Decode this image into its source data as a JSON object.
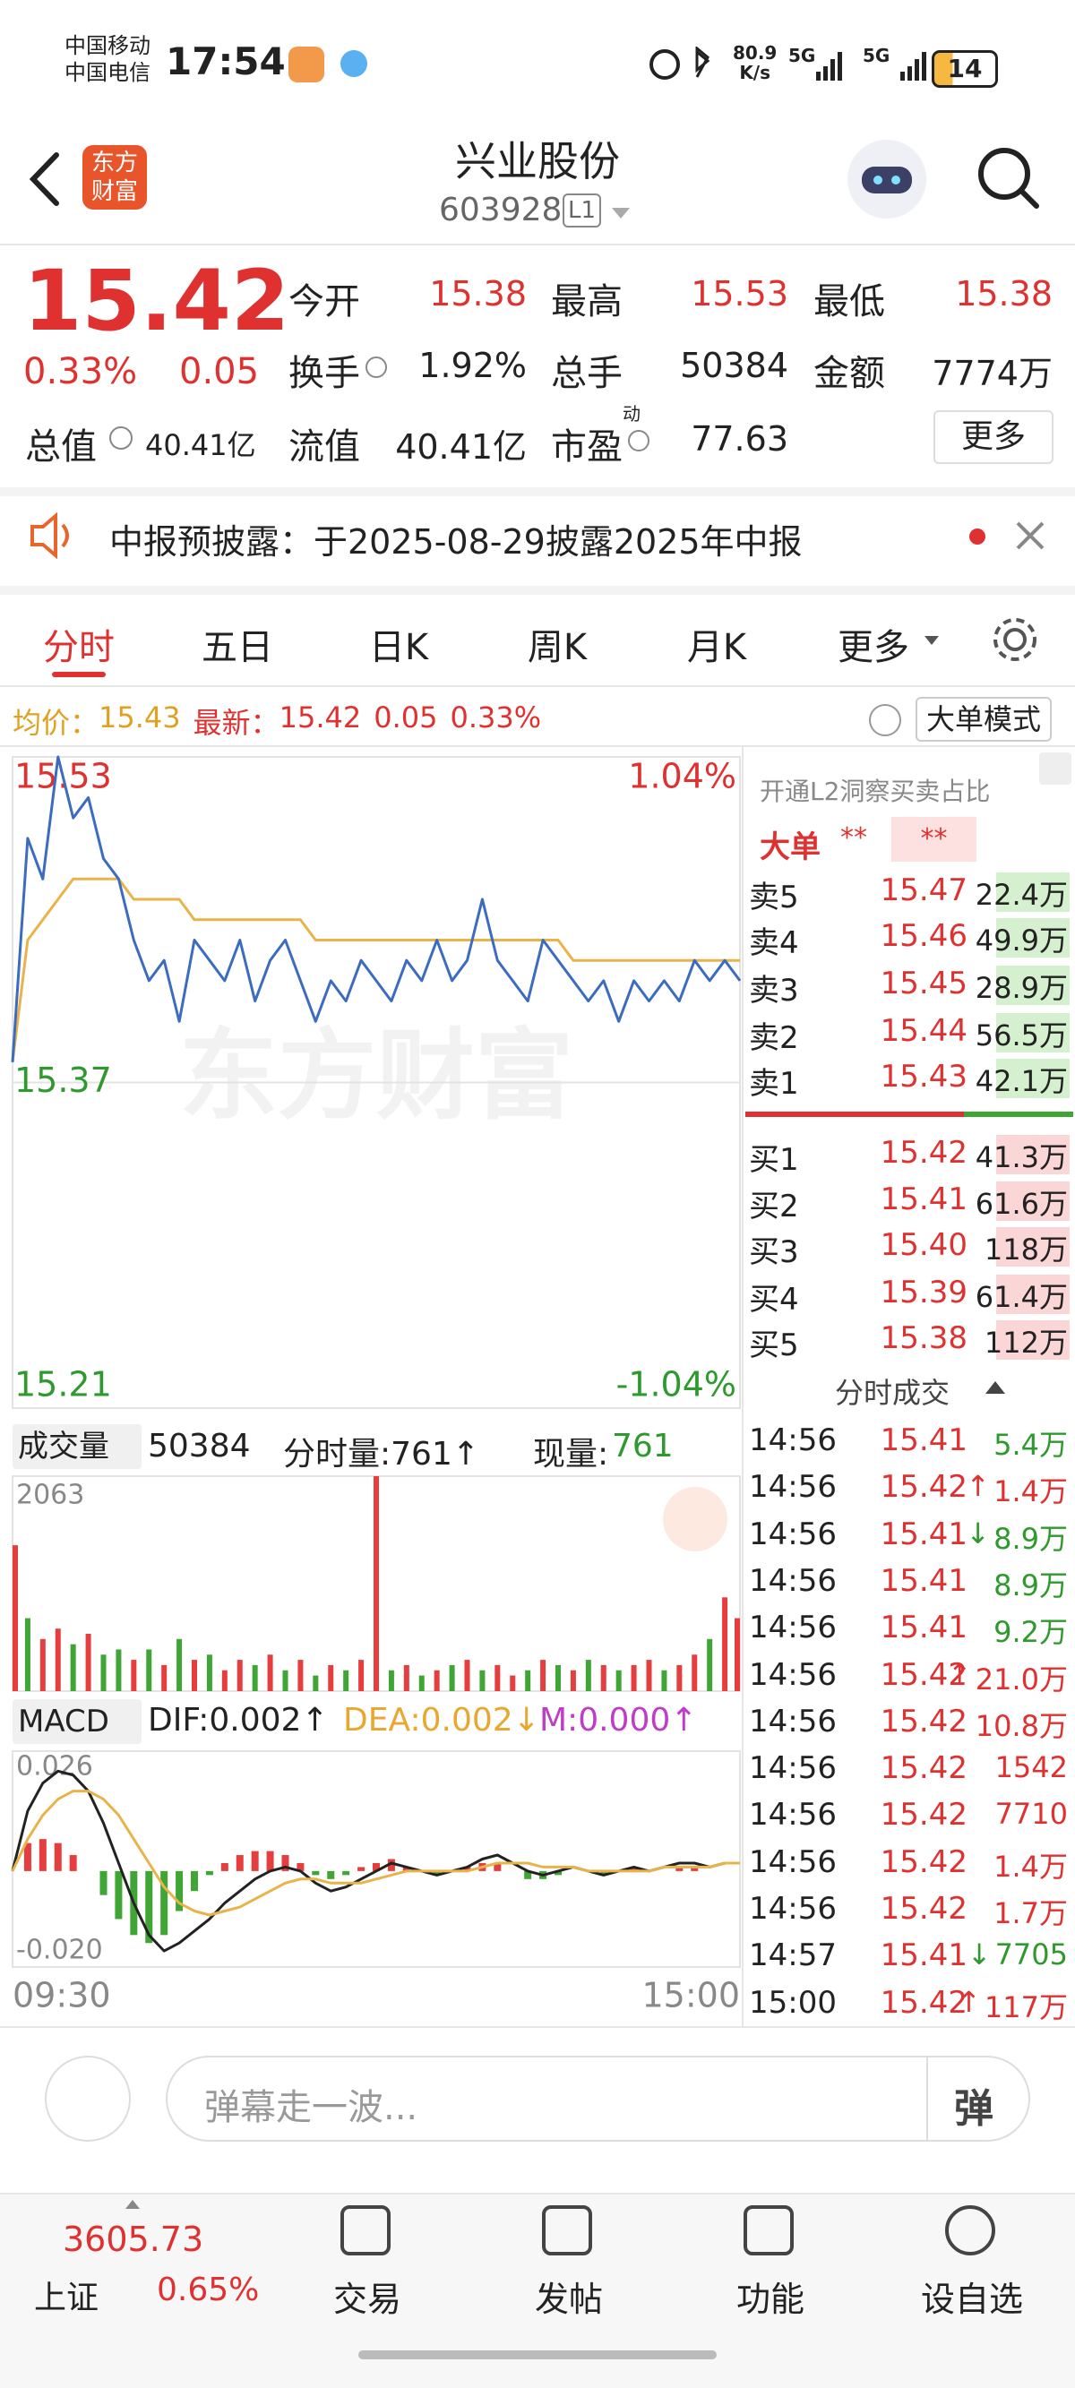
{
  "status_bar": {
    "carrier_1": "中国移动",
    "carrier_2": "中国电信",
    "time": "17:54",
    "net_speed": "80.9",
    "net_speed_unit": "K/s",
    "network_1": "5G",
    "network_2": "5G",
    "battery": "14"
  },
  "header": {
    "logo_line_1": "东方",
    "logo_line_2": "财富",
    "title": "兴业股份",
    "code": "603928",
    "level": "L1"
  },
  "quote": {
    "price": "15.42",
    "change_percent": "0.33%",
    "change": "0.05",
    "total_value_label": "总值",
    "total_value": "40.41亿",
    "more_button": "更多",
    "stats": [
      {
        "label": "今开",
        "value": "15.38"
      },
      {
        "label": "最高",
        "value": "15.53"
      },
      {
        "label": "最低",
        "value": "15.38"
      },
      {
        "label": "换手",
        "value": "1.92%"
      },
      {
        "label": "总手",
        "value": "50384"
      },
      {
        "label": "金额",
        "value": "7774万"
      },
      {
        "label": "流值",
        "value": "40.41亿"
      },
      {
        "label": "市盈",
        "sup": "动",
        "value": "77.63"
      }
    ]
  },
  "notice": {
    "text": "中报预披露：于2025-08-29披露2025年中报"
  },
  "tabs": [
    "分时",
    "五日",
    "日K",
    "周K",
    "月K",
    "更多"
  ],
  "summary": {
    "avg_label": "均价：",
    "avg": "15.43",
    "latest_label": "最新：",
    "latest": "15.42",
    "change": "0.05",
    "change_percent": "0.33%",
    "mode_button": "大单模式"
  },
  "volume_header": {
    "label": "成交量",
    "total": "50384",
    "period_volume": "分时量:761↑",
    "current_label": "现量:",
    "current": "761"
  },
  "macd_header": {
    "label": "MACD",
    "dif": "DIF:0.002↑",
    "dea": "DEA:0.002↓",
    "m": "M:0.000↑"
  },
  "chart_data": [
    {
      "type": "line",
      "watermark": "东方财富",
      "x": [
        0,
        5,
        10,
        15,
        20,
        25,
        30,
        35,
        40,
        45,
        50,
        55,
        60,
        65,
        70,
        75,
        80,
        85,
        90,
        95,
        100,
        105,
        110,
        115,
        120,
        125,
        130,
        135,
        140,
        145,
        150,
        155,
        160,
        165,
        170,
        175,
        180,
        185,
        190,
        195,
        200,
        205,
        210,
        215,
        220,
        225,
        230,
        235,
        240
      ],
      "series": [
        {
          "color": "#3b6cc0",
          "values": [
            15.38,
            15.49,
            15.47,
            15.53,
            15.5,
            15.51,
            15.48,
            15.47,
            15.44,
            15.42,
            15.43,
            15.4,
            15.44,
            15.43,
            15.42,
            15.44,
            15.41,
            15.43,
            15.44,
            15.42,
            15.4,
            15.42,
            15.41,
            15.43,
            15.42,
            15.41,
            15.43,
            15.42,
            15.44,
            15.42,
            15.43,
            15.46,
            15.43,
            15.42,
            15.41,
            15.44,
            15.43,
            15.42,
            15.41,
            15.42,
            15.4,
            15.42,
            15.41,
            15.42,
            15.41,
            15.43,
            15.42,
            15.43,
            15.42
          ]
        },
        {
          "color": "#e8b44a",
          "values": [
            15.38,
            15.44,
            15.45,
            15.46,
            15.47,
            15.47,
            15.47,
            15.47,
            15.46,
            15.46,
            15.46,
            15.46,
            15.45,
            15.45,
            15.45,
            15.45,
            15.45,
            15.45,
            15.45,
            15.45,
            15.44,
            15.44,
            15.44,
            15.44,
            15.44,
            15.44,
            15.44,
            15.44,
            15.44,
            15.44,
            15.44,
            15.44,
            15.44,
            15.44,
            15.44,
            15.44,
            15.44,
            15.43,
            15.43,
            15.43,
            15.43,
            15.43,
            15.43,
            15.43,
            15.43,
            15.43,
            15.43,
            15.43,
            15.43
          ]
        }
      ],
      "xlim": [
        0,
        240
      ],
      "ylim": [
        15.21,
        15.53
      ],
      "yticks": [
        15.21,
        15.37,
        15.53
      ],
      "y2lim": [
        -1.04,
        1.04
      ],
      "y2ticks": [
        {
          "value": -1.04,
          "label": "-1.04%"
        },
        {
          "value": 1.04,
          "label": "1.04%"
        }
      ]
    },
    {
      "type": "bar",
      "x": [
        0,
        5,
        10,
        15,
        20,
        25,
        30,
        35,
        40,
        45,
        50,
        55,
        60,
        65,
        70,
        75,
        80,
        85,
        90,
        95,
        100,
        105,
        110,
        115,
        120,
        125,
        130,
        135,
        140,
        145,
        150,
        155,
        160,
        165,
        170,
        175,
        180,
        185,
        190,
        195,
        200,
        205,
        210,
        215,
        220,
        225,
        230,
        235,
        240
      ],
      "values": [
        1400,
        700,
        500,
        600,
        450,
        550,
        350,
        400,
        300,
        400,
        250,
        500,
        300,
        350,
        200,
        300,
        250,
        350,
        200,
        300,
        150,
        250,
        200,
        300,
        2063,
        200,
        250,
        150,
        200,
        250,
        300,
        200,
        250,
        150,
        200,
        300,
        250,
        200,
        300,
        250,
        200,
        250,
        300,
        200,
        250,
        350,
        500,
        900,
        700
      ],
      "colors": [
        "#e63e3e",
        "#3fa535",
        "#e63e3e",
        "#e63e3e",
        "#3fa535",
        "#e63e3e",
        "#3fa535",
        "#3fa535",
        "#e63e3e",
        "#3fa535",
        "#e63e3e",
        "#3fa535",
        "#e63e3e",
        "#3fa535",
        "#e63e3e",
        "#e63e3e",
        "#3fa535",
        "#e63e3e",
        "#3fa535",
        "#e63e3e",
        "#3fa535",
        "#e63e3e",
        "#3fa535",
        "#e63e3e",
        "#e63e3e",
        "#3fa535",
        "#e63e3e",
        "#3fa535",
        "#e63e3e",
        "#3fa535",
        "#e63e3e",
        "#3fa535",
        "#e63e3e",
        "#e63e3e",
        "#3fa535",
        "#e63e3e",
        "#3fa535",
        "#e63e3e",
        "#3fa535",
        "#e63e3e",
        "#3fa535",
        "#e63e3e",
        "#e63e3e",
        "#3fa535",
        "#e63e3e",
        "#e63e3e",
        "#3fa535",
        "#e63e3e",
        "#e63e3e"
      ],
      "xlim": [
        0,
        240
      ],
      "ylim": [
        0,
        2063
      ],
      "yticks": [
        2063
      ]
    },
    {
      "type": "macd",
      "x": [
        0,
        5,
        10,
        15,
        20,
        25,
        30,
        35,
        40,
        45,
        50,
        55,
        60,
        65,
        70,
        75,
        80,
        85,
        90,
        95,
        100,
        105,
        110,
        115,
        120,
        125,
        130,
        135,
        140,
        145,
        150,
        155,
        160,
        165,
        170,
        175,
        180,
        185,
        190,
        195,
        200,
        205,
        210,
        215,
        220,
        225,
        230,
        235,
        240
      ],
      "series": [
        {
          "color": "#222222",
          "values": [
            0.0,
            0.015,
            0.022,
            0.025,
            0.024,
            0.02,
            0.012,
            0.002,
            -0.008,
            -0.016,
            -0.02,
            -0.018,
            -0.015,
            -0.012,
            -0.008,
            -0.005,
            -0.002,
            0.0,
            0.001,
            0.0,
            -0.003,
            -0.005,
            -0.004,
            -0.002,
            0.0,
            0.002,
            0.001,
            0.0,
            -0.001,
            0.0,
            0.001,
            0.003,
            0.004,
            0.002,
            0.0,
            -0.001,
            0.0,
            0.001,
            0.0,
            -0.001,
            0.0,
            0.001,
            0.0,
            0.001,
            0.002,
            0.002,
            0.001,
            0.002,
            0.002
          ]
        },
        {
          "color": "#e8b44a",
          "values": [
            0.0,
            0.008,
            0.014,
            0.018,
            0.02,
            0.02,
            0.018,
            0.014,
            0.008,
            0.002,
            -0.004,
            -0.008,
            -0.01,
            -0.011,
            -0.01,
            -0.009,
            -0.007,
            -0.005,
            -0.003,
            -0.002,
            -0.002,
            -0.003,
            -0.003,
            -0.003,
            -0.002,
            -0.001,
            0.0,
            0.0,
            0.0,
            0.0,
            0.0,
            0.001,
            0.002,
            0.002,
            0.002,
            0.001,
            0.001,
            0.001,
            0.0,
            0.0,
            0.0,
            0.0,
            0.0,
            0.001,
            0.001,
            0.001,
            0.001,
            0.002,
            0.002
          ]
        }
      ],
      "histogram": {
        "up_color": "#e63e3e",
        "down_color": "#3fa535",
        "values": [
          0.0,
          0.007,
          0.008,
          0.007,
          0.004,
          0.0,
          -0.006,
          -0.012,
          -0.016,
          -0.018,
          -0.016,
          -0.01,
          -0.005,
          -0.001,
          0.002,
          0.004,
          0.005,
          0.005,
          0.004,
          0.002,
          -0.001,
          -0.002,
          -0.001,
          0.001,
          0.002,
          0.003,
          0.001,
          0.0,
          -0.001,
          0.0,
          0.001,
          0.002,
          0.002,
          0.0,
          -0.002,
          -0.002,
          -0.001,
          0.0,
          0.0,
          -0.001,
          0.0,
          0.001,
          0.0,
          0.0,
          0.001,
          0.001,
          0.0,
          0.0,
          0.0
        ]
      },
      "xlim": [
        0,
        240
      ],
      "xticks": [
        {
          "value": 0,
          "label": "09:30"
        },
        {
          "value": 240,
          "label": "15:00"
        }
      ],
      "ylim": [
        -0.024,
        0.03
      ],
      "yticks": [
        {
          "value": -0.02,
          "label": "-0.020"
        },
        0.026
      ]
    }
  ],
  "panel": {
    "promo": "开通L2洞察买卖占比",
    "big_order_label": "大单",
    "big_order_1": "**",
    "big_order_2": "**",
    "asks": [
      {
        "label": "卖5",
        "price": "15.47",
        "volume": "22.4万"
      },
      {
        "label": "卖4",
        "price": "15.46",
        "volume": "49.9万"
      },
      {
        "label": "卖3",
        "price": "15.45",
        "volume": "28.9万"
      },
      {
        "label": "卖2",
        "price": "15.44",
        "volume": "56.5万"
      },
      {
        "label": "卖1",
        "price": "15.43",
        "volume": "42.1万"
      }
    ],
    "bids": [
      {
        "label": "买1",
        "price": "15.42",
        "volume": "41.3万"
      },
      {
        "label": "买2",
        "price": "15.41",
        "volume": "61.6万"
      },
      {
        "label": "买3",
        "price": "15.40",
        "volume": "118万"
      },
      {
        "label": "买4",
        "price": "15.39",
        "volume": "61.4万"
      },
      {
        "label": "买5",
        "price": "15.38",
        "volume": "112万"
      }
    ],
    "trades_title": "分时成交",
    "trades": [
      {
        "time": "14:56",
        "price": "15.41",
        "volume": "5.4万",
        "color": "#2e9a2e"
      },
      {
        "time": "14:56",
        "price": "15.42",
        "arrow": "↑",
        "volume": "1.4万",
        "color": "#e03131"
      },
      {
        "time": "14:56",
        "price": "15.41",
        "arrow": "↓",
        "volume": "8.9万",
        "color": "#2e9a2e"
      },
      {
        "time": "14:56",
        "price": "15.41",
        "volume": "8.9万",
        "color": "#2e9a2e"
      },
      {
        "time": "14:56",
        "price": "15.41",
        "volume": "9.2万",
        "color": "#2e9a2e"
      },
      {
        "time": "14:56",
        "price": "15.42",
        "arrow": "↑",
        "volume": "21.0万",
        "color": "#e03131"
      },
      {
        "time": "14:56",
        "price": "15.42",
        "volume": "10.8万",
        "color": "#e03131"
      },
      {
        "time": "14:56",
        "price": "15.42",
        "volume": "1542",
        "color": "#e03131"
      },
      {
        "time": "14:56",
        "price": "15.42",
        "volume": "7710",
        "color": "#e03131"
      },
      {
        "time": "14:56",
        "price": "15.42",
        "volume": "1.4万",
        "color": "#e03131"
      },
      {
        "time": "14:56",
        "price": "15.42",
        "volume": "1.7万",
        "color": "#e03131"
      },
      {
        "time": "14:57",
        "price": "15.41",
        "arrow": "↓",
        "volume": "7705",
        "color": "#2e9a2e"
      },
      {
        "time": "15:00",
        "price": "15.42",
        "arrow": "↑",
        "volume": "117万",
        "color": "#e03131"
      }
    ]
  },
  "comment_bar": {
    "placeholder": "弹幕走一波...",
    "button": "弹"
  },
  "bottom_nav": {
    "index_value": "3605.73",
    "index_name": "上证",
    "index_change": "0.65%",
    "items": [
      "交易",
      "发帖",
      "功能",
      "设自选"
    ]
  }
}
